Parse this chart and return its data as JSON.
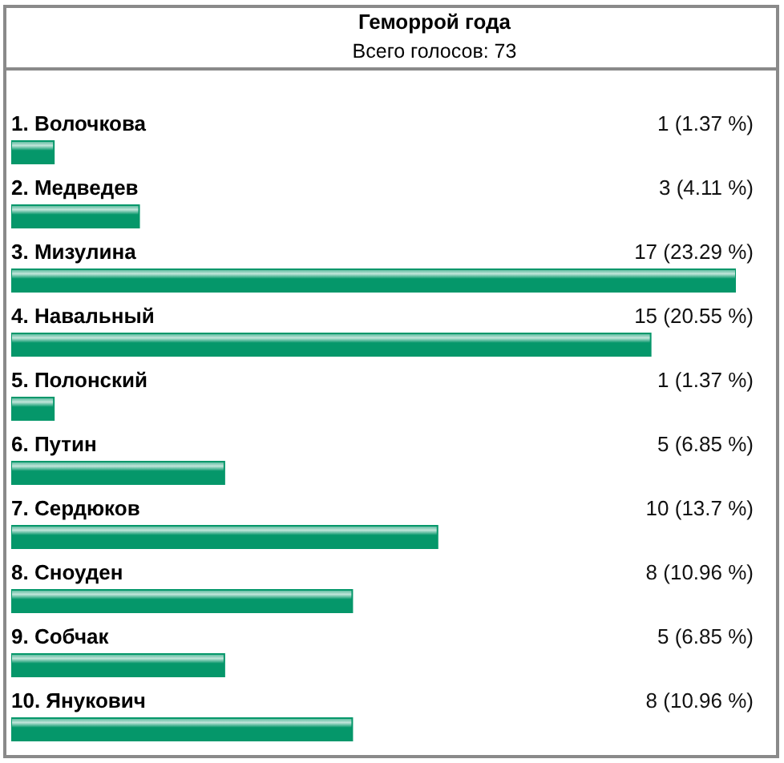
{
  "chart_data": {
    "type": "bar",
    "orientation": "horizontal",
    "title": "Геморрой года",
    "subtitle": "Всего голосов: 73",
    "categories": [
      "1. Волочкова",
      "2. Медведев",
      "3. Мизулина",
      "4. Навальный",
      "5. Полонский",
      "6. Путин",
      "7. Сердюков",
      "8. Сноуден",
      "9. Собчак",
      "10. Янукович"
    ],
    "values": [
      1,
      3,
      17,
      15,
      1,
      5,
      10,
      8,
      5,
      8
    ],
    "value_labels": [
      "1 (1.37 %)",
      "3 (4.11 %)",
      "17 (23.29 %)",
      "15 (20.55 %)",
      "1 (1.37 %)",
      "5 (6.85 %)",
      "10 (13.7 %)",
      "8 (10.96 %)",
      "5 (6.85 %)",
      "8 (10.96 %)"
    ],
    "color": "#05976a"
  }
}
